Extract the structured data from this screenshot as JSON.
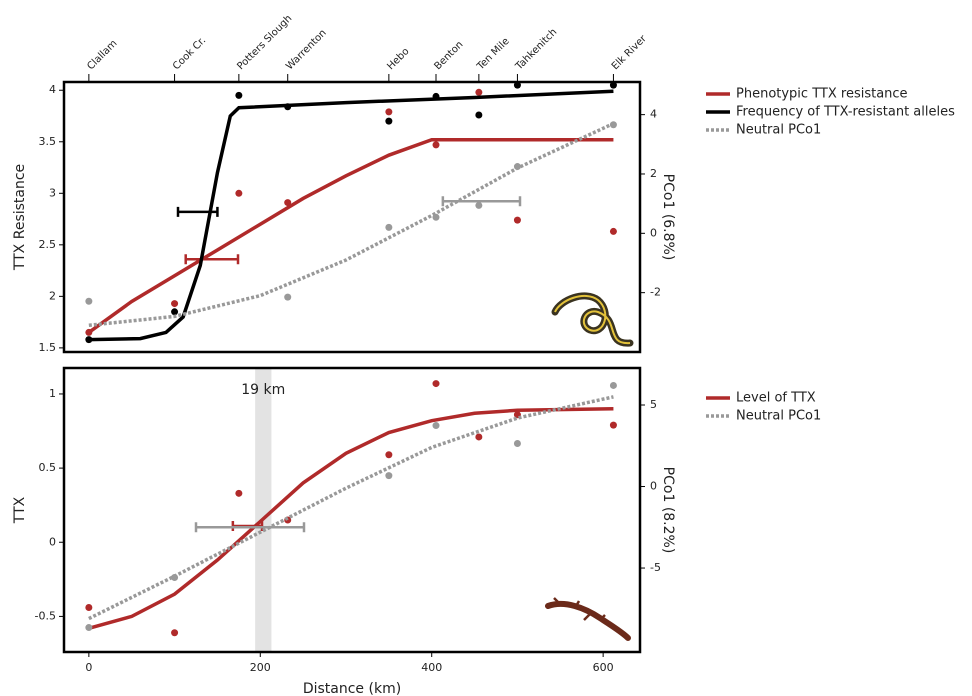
{
  "chart_data": [
    {
      "type": "line",
      "ylabel": "TTX Resistance",
      "y2label": "PCo1 (6.8%)",
      "xlim": [
        -29,
        643
      ],
      "ylim": [
        1.46,
        4.08
      ],
      "yticks": [
        1.5,
        2.0,
        2.5,
        3.0,
        3.5,
        4.0
      ],
      "y2lim": [
        -4,
        5.1
      ],
      "y2ticks": [
        -2,
        0,
        2,
        4
      ],
      "sites": [
        "Clallam",
        "Cook Cr.",
        "Potters Slough",
        "Warrenton",
        "Hebo",
        "Benton",
        "Ten Mile",
        "Tahkenitch",
        "Elk River"
      ],
      "site_x": [
        0,
        100,
        175,
        232,
        350,
        405,
        455,
        500,
        612
      ],
      "series": [
        {
          "name": "Phenotypic TTX resistance",
          "color": "#b02a2a",
          "style": "solid",
          "x": [
            0,
            50,
            100,
            150,
            200,
            250,
            300,
            350,
            400,
            612
          ],
          "values": [
            1.65,
            1.95,
            2.2,
            2.45,
            2.7,
            2.95,
            3.17,
            3.37,
            3.52,
            3.52
          ],
          "points_x": [
            0,
            100,
            175,
            232,
            350,
            405,
            455,
            500,
            612
          ],
          "points": [
            1.65,
            1.93,
            3.0,
            2.91,
            3.79,
            3.47,
            3.98,
            2.74,
            2.63
          ],
          "error_bar": {
            "y": 2.36,
            "xmin": 113,
            "xmax": 174
          }
        },
        {
          "name": "Frequency of TTX-resistant alleles",
          "color": "#000000",
          "style": "solid",
          "x": [
            0,
            60,
            90,
            110,
            130,
            150,
            165,
            175,
            300,
            450,
            612
          ],
          "values": [
            1.58,
            1.59,
            1.65,
            1.8,
            2.3,
            3.2,
            3.75,
            3.83,
            3.88,
            3.93,
            3.99
          ],
          "points_x": [
            0,
            100,
            175,
            232,
            350,
            405,
            455,
            500,
            612
          ],
          "points": [
            1.58,
            1.85,
            3.95,
            3.84,
            3.7,
            3.94,
            3.76,
            4.05,
            4.05
          ],
          "error_bar": {
            "y": 2.82,
            "xmin": 104,
            "xmax": 150
          }
        },
        {
          "name": "Neutral PCo1",
          "color": "#999999",
          "style": "dotted",
          "axis": "y2",
          "x": [
            0,
            100,
            200,
            300,
            400,
            500,
            612
          ],
          "values": [
            -3.1,
            -2.8,
            -2.1,
            -0.9,
            0.6,
            2.2,
            3.7
          ],
          "points_x": [
            0,
            232,
            350,
            405,
            455,
            500,
            612
          ],
          "points": [
            -2.29,
            -2.15,
            0.2,
            0.54,
            0.94,
            2.25,
            3.66
          ],
          "error_bar": {
            "y": 1.08,
            "xmin": 413,
            "xmax": 503
          }
        }
      ]
    },
    {
      "type": "line",
      "ylabel": "TTX",
      "y2label": "PCo1 (8.2%)",
      "xlabel": "Distance (km)",
      "xlim": [
        -29,
        643
      ],
      "xticks": [
        0,
        200,
        400,
        600
      ],
      "ylim": [
        -0.74,
        1.175
      ],
      "yticks": [
        -0.5,
        0.0,
        0.5,
        1.0
      ],
      "y2lim": [
        -10.15,
        7.27
      ],
      "y2ticks": [
        -5,
        0,
        5
      ],
      "band": [
        194,
        213
      ],
      "band_label": "19 km",
      "series": [
        {
          "name": "Level of TTX",
          "color": "#b02a2a",
          "style": "solid",
          "x": [
            0,
            50,
            100,
            150,
            200,
            250,
            300,
            350,
            400,
            450,
            500,
            612
          ],
          "values": [
            -0.58,
            -0.5,
            -0.35,
            -0.12,
            0.14,
            0.4,
            0.6,
            0.74,
            0.82,
            0.87,
            0.89,
            0.9
          ],
          "points_x": [
            0,
            100,
            175,
            232,
            350,
            405,
            455,
            500,
            612
          ],
          "points": [
            -0.44,
            -0.61,
            0.33,
            0.15,
            0.59,
            1.07,
            0.71,
            0.86,
            0.79
          ],
          "error_bar": {
            "y": 0.11,
            "xmin": 168,
            "xmax": 202
          }
        },
        {
          "name": "Neutral PCo1",
          "color": "#999999",
          "style": "dotted",
          "axis": "y2",
          "x": [
            0,
            100,
            200,
            300,
            400,
            500,
            612
          ],
          "values": [
            -8.1,
            -5.5,
            -2.8,
            -0.1,
            2.4,
            4.2,
            5.5
          ],
          "points_x": [
            0,
            100,
            350,
            405,
            500,
            612
          ],
          "points": [
            -8.65,
            -5.58,
            0.67,
            3.74,
            2.64,
            6.2
          ],
          "error_bar": {
            "y": -2.5,
            "xmin": 125,
            "xmax": 251
          }
        }
      ]
    }
  ]
}
